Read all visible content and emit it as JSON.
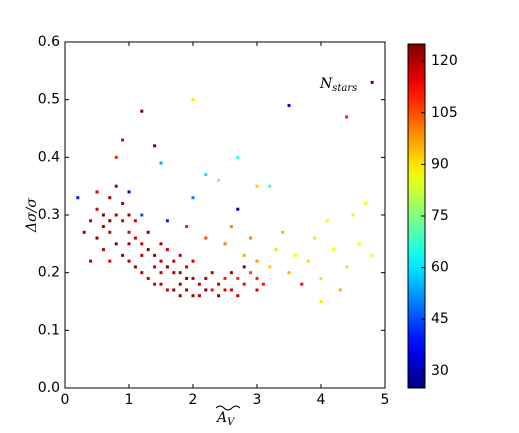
{
  "chart_data": {
    "type": "scatter",
    "ylabel": "Δσ/σ",
    "xlabel": {
      "main": "A",
      "sub": "V"
    },
    "annotation": {
      "main": "N",
      "sub": "stars"
    },
    "xlim": [
      0,
      5
    ],
    "xticks": [
      0,
      1,
      2,
      3,
      4,
      5
    ],
    "ylim": [
      0,
      0.6
    ],
    "yticks": [
      {
        "value": 0,
        "label": "0.0"
      },
      0.1,
      0.2,
      0.3,
      0.4,
      0.5,
      0.6
    ],
    "clim": [
      25,
      125
    ],
    "cticks": [
      30,
      45,
      60,
      75,
      90,
      105,
      120
    ],
    "colormap": "jet",
    "x": [
      0.3,
      0.4,
      0.5,
      0.5,
      0.6,
      0.6,
      0.7,
      0.7,
      0.8,
      0.8,
      0.9,
      0.9,
      1.0,
      1.0,
      1.1,
      1.1,
      1.2,
      1.2,
      1.3,
      1.3,
      1.4,
      1.4,
      1.5,
      1.5,
      1.6,
      1.6,
      1.7,
      1.7,
      1.8,
      1.8,
      1.9,
      1.9,
      2.0,
      2.0,
      2.1,
      2.2,
      2.3,
      2.4,
      2.5,
      2.6,
      2.7,
      2.8,
      2.9,
      3.0,
      0.4,
      0.5,
      0.6,
      0.7,
      0.8,
      0.9,
      1.0,
      1.1,
      1.2,
      1.3,
      1.4,
      1.5,
      1.6,
      1.7,
      1.8,
      1.9,
      2.0,
      2.1,
      2.2,
      2.3,
      2.4,
      2.5,
      2.6,
      2.7,
      2.8,
      3.0,
      1.0,
      0.7,
      1.5,
      1.8,
      2.5,
      2.8,
      3.0,
      3.2,
      3.3,
      3.5,
      3.6,
      3.8,
      4.0,
      4.2,
      4.4,
      4.6,
      4.8,
      3.4,
      3.9,
      2.6,
      4.1,
      4.5,
      4.7,
      3.0,
      4.3,
      4.0,
      2.2,
      1.9,
      2.9,
      3.1,
      3.7,
      0.2,
      1.0,
      1.2,
      2.7,
      3.5,
      2.2,
      1.5,
      4.8,
      1.2,
      2.7,
      0.8,
      3.2,
      2.0,
      1.4,
      1.6,
      2.4,
      4.4,
      2.0,
      0.9
    ],
    "y": [
      0.27,
      0.29,
      0.26,
      0.31,
      0.28,
      0.24,
      0.33,
      0.27,
      0.3,
      0.25,
      0.29,
      0.23,
      0.27,
      0.22,
      0.26,
      0.21,
      0.25,
      0.2,
      0.24,
      0.19,
      0.23,
      0.18,
      0.22,
      0.18,
      0.21,
      0.17,
      0.22,
      0.17,
      0.2,
      0.16,
      0.21,
      0.17,
      0.19,
      0.16,
      0.18,
      0.19,
      0.17,
      0.18,
      0.19,
      0.17,
      0.19,
      0.18,
      0.2,
      0.19,
      0.22,
      0.34,
      0.3,
      0.22,
      0.35,
      0.32,
      0.3,
      0.29,
      0.23,
      0.27,
      0.21,
      0.25,
      0.24,
      0.2,
      0.23,
      0.19,
      0.22,
      0.16,
      0.17,
      0.2,
      0.16,
      0.17,
      0.2,
      0.16,
      0.21,
      0.17,
      0.25,
      0.29,
      0.2,
      0.18,
      0.25,
      0.23,
      0.22,
      0.21,
      0.24,
      0.2,
      0.23,
      0.22,
      0.19,
      0.24,
      0.21,
      0.25,
      0.23,
      0.27,
      0.26,
      0.28,
      0.29,
      0.3,
      0.32,
      0.35,
      0.17,
      0.15,
      0.26,
      0.28,
      0.26,
      0.18,
      0.18,
      0.33,
      0.34,
      0.3,
      0.31,
      0.49,
      0.37,
      0.39,
      0.53,
      0.48,
      0.4,
      0.4,
      0.35,
      0.33,
      0.42,
      0.29,
      0.36,
      0.47,
      0.5,
      0.43
    ],
    "c": [
      122,
      118,
      124,
      116,
      121,
      119,
      123,
      117,
      120,
      124,
      118,
      122,
      116,
      121,
      119,
      123,
      117,
      120,
      124,
      118,
      122,
      116,
      121,
      119,
      123,
      117,
      120,
      124,
      118,
      122,
      116,
      121,
      119,
      123,
      117,
      120,
      112,
      118,
      110,
      115,
      108,
      114,
      106,
      110,
      120,
      118,
      124,
      116,
      121,
      119,
      123,
      117,
      120,
      124,
      118,
      122,
      116,
      121,
      119,
      123,
      117,
      120,
      124,
      118,
      122,
      116,
      121,
      119,
      123,
      117,
      120,
      124,
      118,
      122,
      100,
      95,
      98,
      92,
      90,
      95,
      88,
      92,
      90,
      87,
      90,
      85,
      88,
      95,
      90,
      100,
      85,
      83,
      85,
      92,
      95,
      90,
      105,
      110,
      100,
      110,
      112,
      40,
      35,
      45,
      30,
      35,
      60,
      55,
      125,
      125,
      65,
      110,
      70,
      50,
      125,
      40,
      75,
      110,
      90,
      115
    ]
  }
}
